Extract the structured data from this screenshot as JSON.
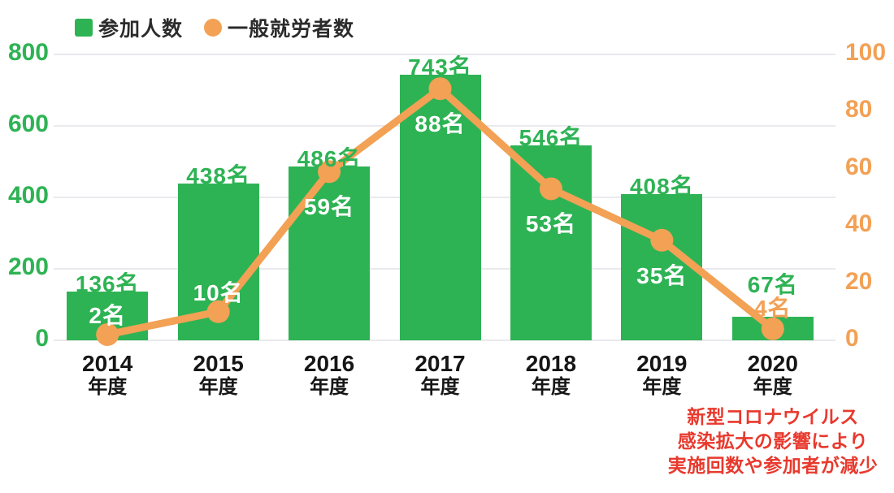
{
  "legend": {
    "items": [
      {
        "label": "参加人数",
        "shape": "square",
        "color": "#2eb354"
      },
      {
        "label": "一般就労者数",
        "shape": "circle",
        "color": "#f2a155"
      }
    ]
  },
  "chart_data": {
    "type": "bar+line",
    "categories": [
      "2014",
      "2015",
      "2016",
      "2017",
      "2018",
      "2019",
      "2020"
    ],
    "category_suffix": "年度",
    "series": [
      {
        "name": "参加人数",
        "type": "bar",
        "axis": "left",
        "color": "#2eb354",
        "values": [
          136,
          438,
          486,
          743,
          546,
          408,
          67
        ],
        "value_labels": [
          "136名",
          "438名",
          "486名",
          "743名",
          "546名",
          "408名",
          "67名"
        ]
      },
      {
        "name": "一般就労者数",
        "type": "line",
        "axis": "right",
        "color": "#f2a155",
        "values": [
          2,
          10,
          59,
          88,
          53,
          35,
          4
        ],
        "value_labels": [
          "2名",
          "10名",
          "59名",
          "88名",
          "53名",
          "35名",
          "4名"
        ],
        "label_placement": [
          "above-point",
          "above-point",
          "below-point",
          "below-point",
          "below-point",
          "below-point",
          "above-bar"
        ]
      }
    ],
    "left_axis": {
      "ticks": [
        0,
        200,
        400,
        600,
        800
      ],
      "min": 0,
      "max": 800,
      "color": "#2eb354"
    },
    "right_axis": {
      "ticks": [
        0,
        20,
        40,
        60,
        80,
        100
      ],
      "min": 0,
      "max": 100,
      "color": "#f2a155"
    },
    "grid": true,
    "legend_position": "top-left",
    "annotation": {
      "lines": [
        "新型コロナウイルス",
        "感染拡大の影響により",
        "実施回数や参加者が減少"
      ],
      "color": "#e8392d",
      "anchor": "below-2020"
    }
  }
}
